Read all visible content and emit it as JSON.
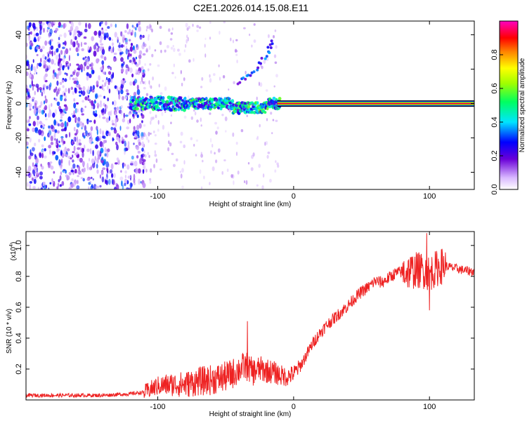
{
  "figure_title": "C2E1.2026.014.15.08.E11",
  "colors": {
    "snr_line": "#ee2222",
    "frame": "#000000"
  },
  "chart_data": [
    {
      "type": "heatmap",
      "title": "C2E1.2026.014.15.08.E11",
      "xlabel": "Height of straight line (km)",
      "ylabel": "Frequency (Hz)",
      "xlim": [
        -197,
        133
      ],
      "ylim": [
        -50,
        48
      ],
      "x_ticks": [
        -100,
        0,
        100
      ],
      "x_tick_labels": [
        "-100",
        "0",
        "100"
      ],
      "y_ticks": [
        -40,
        -20,
        0,
        20,
        40
      ],
      "y_tick_labels": [
        "-40",
        "-20",
        "0",
        "20",
        "40"
      ],
      "colorbar": {
        "label": "Normalized spectral amplitude",
        "range": [
          0,
          1
        ],
        "ticks": [
          0.0,
          0.2,
          0.4,
          0.6,
          0.8
        ],
        "tick_labels": [
          "0.0",
          "0.2",
          "0.4",
          "0.6",
          "0.8"
        ]
      },
      "features": [
        {
          "name": "broadband noise",
          "x_range": [
            -197,
            -110
          ],
          "y_range": [
            -50,
            48
          ],
          "level": 0.25
        },
        {
          "name": "sparse scatter",
          "x_range": [
            -110,
            -10
          ],
          "y_range": [
            -50,
            48
          ],
          "level": 0.1
        },
        {
          "name": "main tone",
          "x_range": [
            -120,
            133
          ],
          "center_y": 0,
          "amplitude": 1.0
        },
        {
          "name": "rising branch",
          "x": [
            -40,
            -30,
            -20,
            -15
          ],
          "y": [
            12,
            18,
            28,
            38
          ],
          "amplitude": 0.45
        }
      ]
    },
    {
      "type": "line",
      "xlabel": "Height of straight line (km)",
      "ylabel": "SNR (10 * v/v)",
      "yscale_label": "(x10",
      "yscale_exponent": "4",
      "xlim": [
        -197,
        133
      ],
      "ylim": [
        0,
        1.09
      ],
      "x_ticks": [
        -100,
        0,
        100
      ],
      "x_tick_labels": [
        "-100",
        "0",
        "100"
      ],
      "y_ticks": [
        0.2,
        0.4,
        0.6,
        0.8,
        1.0
      ],
      "y_tick_labels": [
        "0.2",
        "0.4",
        "0.6",
        "0.8",
        "1.0"
      ],
      "series": [
        {
          "name": "SNR",
          "x": [
            -197,
            -180,
            -160,
            -140,
            -120,
            -110,
            -105,
            -100,
            -90,
            -80,
            -70,
            -60,
            -50,
            -45,
            -40,
            -35,
            -30,
            -25,
            -20,
            -15,
            -10,
            -5,
            0,
            5,
            10,
            15,
            20,
            25,
            30,
            35,
            40,
            45,
            50,
            55,
            60,
            65,
            70,
            75,
            80,
            85,
            90,
            95,
            100,
            105,
            110,
            115,
            120,
            125,
            133
          ],
          "y": [
            0.03,
            0.03,
            0.03,
            0.03,
            0.04,
            0.05,
            0.07,
            0.09,
            0.1,
            0.1,
            0.12,
            0.13,
            0.15,
            0.17,
            0.2,
            0.22,
            0.18,
            0.2,
            0.19,
            0.18,
            0.16,
            0.15,
            0.17,
            0.22,
            0.3,
            0.38,
            0.44,
            0.49,
            0.53,
            0.57,
            0.61,
            0.66,
            0.7,
            0.73,
            0.77,
            0.76,
            0.79,
            0.82,
            0.83,
            0.83,
            0.84,
            0.84,
            0.82,
            0.85,
            0.87,
            0.86,
            0.85,
            0.84,
            0.83
          ],
          "annotated_spikes": [
            {
              "x": -34,
              "y": 0.51
            },
            {
              "x": 98,
              "y": 1.08
            },
            {
              "x": 100,
              "y": 0.58
            }
          ]
        }
      ]
    }
  ]
}
